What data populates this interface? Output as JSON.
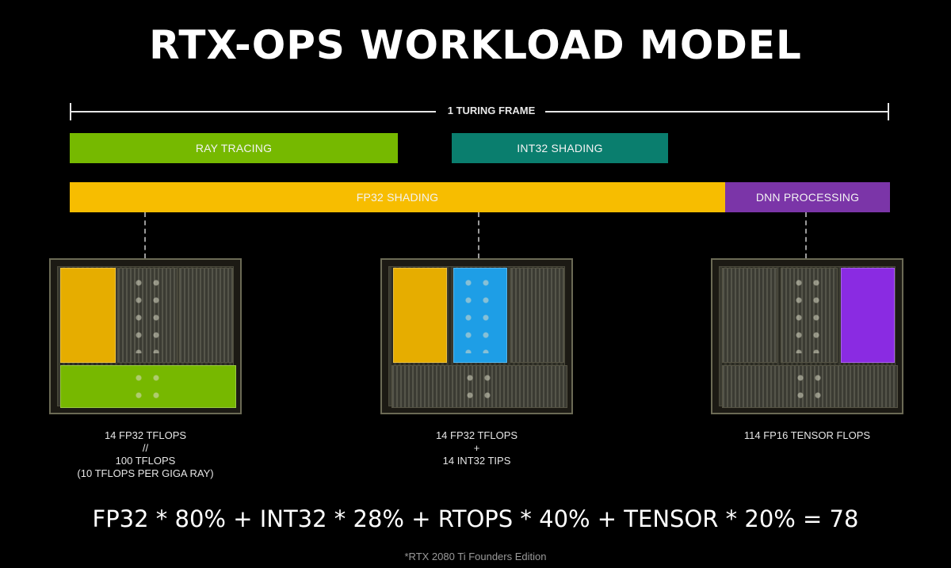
{
  "title": "RTX-OPS WORKLOAD MODEL",
  "timeline": {
    "label": "1 TURING FRAME"
  },
  "workloads": {
    "ray_tracing": {
      "label": "RAY TRACING",
      "color": "#76b900"
    },
    "int32_shading": {
      "label": "INT32 SHADING",
      "color": "#0a7e6e"
    },
    "fp32_shading": {
      "label": "FP32 SHADING",
      "color": "#f7bd00"
    },
    "dnn_processing": {
      "label": "DNN PROCESSING",
      "color": "#7b35a8"
    }
  },
  "dies": [
    {
      "caption_lines": [
        "14 FP32 TFLOPS",
        "//",
        "100 TFLOPS",
        "(10 TFLOPS PER GIGA RAY)"
      ],
      "highlights": [
        "fp32-yellow",
        "rt-green"
      ]
    },
    {
      "caption_lines": [
        "14 FP32 TFLOPS",
        "+",
        "14 INT32 TIPS"
      ],
      "highlights": [
        "fp32-yellow",
        "int32-blue"
      ]
    },
    {
      "caption_lines": [
        "114 FP16 TENSOR FLOPS"
      ],
      "highlights": [
        "tensor-purple"
      ]
    }
  ],
  "highlight_colors": {
    "fp32": "#f2b400",
    "rt": "#7ac000",
    "int32": "#1a9fe8",
    "tensor": "#8a2be2"
  },
  "formula": "FP32 * 80% + INT32 * 28% + RTOPS * 40% + TENSOR * 20% = 78",
  "footnote": "*RTX 2080 Ti Founders Edition"
}
